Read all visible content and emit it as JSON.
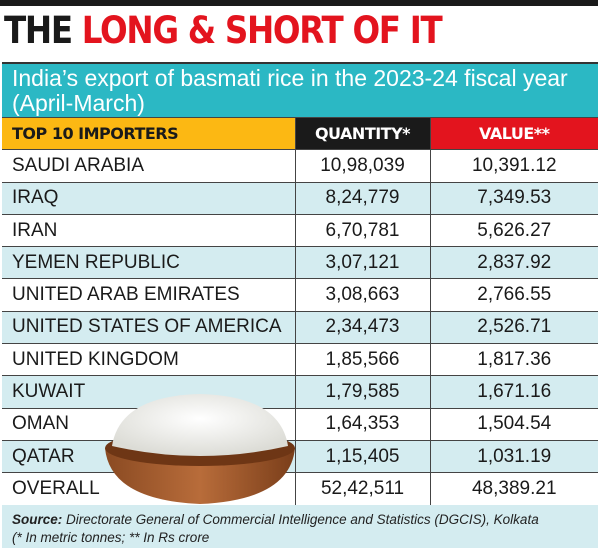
{
  "header": {
    "title_black": "THE",
    "title_red": "LONG & SHORT OF IT",
    "subtitle": "India’s export of basmati rice in the 2023-24 fiscal year (April-March)"
  },
  "colors": {
    "red": "#e3141e",
    "teal": "#2bb8c4",
    "yellow": "#fcb813",
    "row_alt": "#d4ecf0"
  },
  "chart_data": {
    "type": "table",
    "columns": [
      "TOP 10 IMPORTERS",
      "QUANTITY*",
      "VALUE**"
    ],
    "rows": [
      [
        "SAUDI ARABIA",
        "10,98,039",
        "10,391.12"
      ],
      [
        "IRAQ",
        "8,24,779",
        "7,349.53"
      ],
      [
        "IRAN",
        "6,70,781",
        "5,626.27"
      ],
      [
        "YEMEN REPUBLIC",
        "3,07,121",
        "2,837.92"
      ],
      [
        "UNITED ARAB EMIRATES",
        "3,08,663",
        "2,766.55"
      ],
      [
        "UNITED STATES OF AMERICA",
        "2,34,473",
        "2,526.71"
      ],
      [
        "UNITED KINGDOM",
        "1,85,566",
        "1,817.36"
      ],
      [
        "KUWAIT",
        "1,79,585",
        "1,671.16"
      ],
      [
        "OMAN",
        "1,64,353",
        "1,504.54"
      ],
      [
        "QATAR",
        "1,15,405",
        "1,031.19"
      ],
      [
        "OVERALL",
        "52,42,511",
        "48,389.21"
      ]
    ]
  },
  "footer": {
    "source_label": "Source:",
    "source_text": " Directorate General of Commercial Intelligence and Statistics (DGCIS), Kolkata",
    "note": "(* In metric tonnes; ** In Rs crore"
  },
  "image": {
    "icon": "rice-bowl-illustration"
  }
}
